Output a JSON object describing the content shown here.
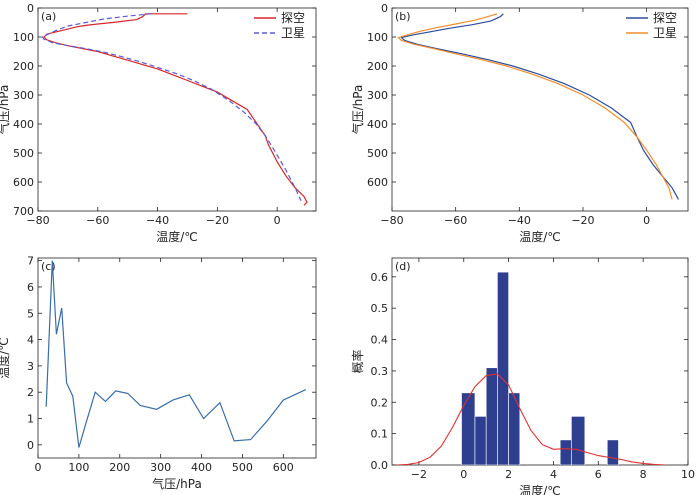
{
  "chart_data": [
    {
      "panel": "(a)",
      "type": "line",
      "xlabel": "温度/℃",
      "ylabel": "气压/hPa",
      "xlim": [
        -80,
        13
      ],
      "ylim": [
        700,
        0
      ],
      "y_inverted": true,
      "xticks": [
        -80,
        -60,
        -40,
        -20,
        0
      ],
      "yticks": [
        0,
        100,
        200,
        300,
        400,
        500,
        600,
        700
      ],
      "legend": "top-right",
      "series": [
        {
          "name": "探空",
          "color": "#d62728",
          "dash": "solid",
          "x": [
            -30,
            -44,
            -44.5,
            -45,
            -47,
            -55,
            -60,
            -64,
            -67,
            -69,
            -71,
            -73,
            -75,
            -77,
            -78,
            -77,
            -74,
            -70,
            -65,
            -60,
            -55,
            -50,
            -45,
            -40,
            -35,
            -30,
            -25,
            -20,
            -15,
            -10,
            -8,
            -6,
            -4,
            -3,
            0,
            3,
            6,
            9,
            10,
            9
          ],
          "y": [
            20,
            20,
            25,
            30,
            40,
            50,
            55,
            60,
            65,
            70,
            75,
            80,
            85,
            90,
            100,
            110,
            120,
            130,
            140,
            150,
            165,
            180,
            195,
            210,
            230,
            250,
            270,
            290,
            320,
            350,
            380,
            410,
            440,
            470,
            530,
            580,
            620,
            650,
            670,
            680
          ]
        },
        {
          "name": "卫星",
          "color": "#5b5bd6",
          "dash": "dashed",
          "x": [
            -42,
            -50,
            -58,
            -64,
            -70,
            -74,
            -77,
            -78.5,
            -78,
            -75,
            -70,
            -64,
            -58,
            -52,
            -46,
            -40,
            -34,
            -28,
            -22,
            -16,
            -11,
            -7,
            -4,
            -1,
            3,
            6,
            8
          ],
          "y": [
            20,
            28,
            38,
            50,
            62,
            78,
            92,
            100,
            108,
            120,
            130,
            140,
            152,
            168,
            185,
            205,
            225,
            250,
            280,
            320,
            360,
            400,
            440,
            490,
            560,
            620,
            665
          ]
        }
      ]
    },
    {
      "panel": "(b)",
      "type": "line",
      "xlabel": "温度/℃",
      "ylabel": "气压/hPa",
      "xlim": [
        -80,
        13
      ],
      "ylim": [
        700,
        0
      ],
      "y_inverted": true,
      "xticks": [
        -80,
        -60,
        -40,
        -20,
        0
      ],
      "yticks": [
        0,
        100,
        200,
        300,
        400,
        500,
        600
      ],
      "legend": "top-right",
      "series": [
        {
          "name": "探空",
          "color": "#2c4b9c",
          "x": [
            -45,
            -46,
            -49,
            -55,
            -62,
            -68,
            -73,
            -77,
            -76,
            -72,
            -66,
            -58,
            -50,
            -42,
            -34,
            -26,
            -18,
            -11,
            -5,
            -3,
            -1,
            2,
            5,
            8,
            10
          ],
          "y": [
            20,
            30,
            45,
            58,
            70,
            82,
            92,
            102,
            112,
            125,
            140,
            158,
            178,
            200,
            228,
            260,
            300,
            345,
            395,
            445,
            490,
            540,
            580,
            620,
            660
          ]
        },
        {
          "name": "卫星",
          "color": "#f28e2b",
          "x": [
            -47,
            -50,
            -54,
            -60,
            -66,
            -71,
            -75,
            -78,
            -77,
            -73,
            -67,
            -60,
            -52,
            -44,
            -36,
            -28,
            -20,
            -13,
            -7,
            -3,
            0,
            3,
            5,
            7,
            8
          ],
          "y": [
            20,
            30,
            42,
            55,
            68,
            80,
            92,
            102,
            112,
            125,
            140,
            158,
            178,
            200,
            228,
            260,
            300,
            345,
            395,
            445,
            490,
            540,
            580,
            620,
            660
          ]
        }
      ]
    },
    {
      "panel": "(c)",
      "type": "line",
      "xlabel": "气压/hPa",
      "ylabel": "温度/℃",
      "xlim": [
        0,
        680
      ],
      "ylim": [
        -0.5,
        7.1
      ],
      "xticks": [
        0,
        100,
        200,
        300,
        400,
        500,
        600
      ],
      "yticks": [
        0,
        1,
        2,
        3,
        4,
        5,
        6,
        7
      ],
      "series": [
        {
          "name": "",
          "color": "#3a6ea5",
          "x": [
            20,
            35,
            45,
            58,
            70,
            85,
            100,
            115,
            140,
            165,
            190,
            220,
            250,
            290,
            330,
            370,
            405,
            445,
            480,
            520,
            560,
            600,
            655
          ],
          "y": [
            1.45,
            7.0,
            4.2,
            5.2,
            2.35,
            1.85,
            -0.1,
            0.7,
            2.0,
            1.65,
            2.05,
            1.95,
            1.5,
            1.35,
            1.7,
            1.9,
            1.0,
            1.6,
            0.15,
            0.2,
            0.9,
            1.7,
            2.1
          ]
        }
      ]
    },
    {
      "panel": "(d)",
      "type": "bar",
      "xlabel": "温度/℃",
      "ylabel": "概率",
      "xlim": [
        -3.2,
        10
      ],
      "ylim": [
        0,
        0.66
      ],
      "xticks": [
        -2,
        0,
        2,
        4,
        6,
        8,
        10
      ],
      "yticks": [
        0.0,
        0.1,
        0.2,
        0.3,
        0.4,
        0.5,
        0.6
      ],
      "bar_color": "#2e3f8f",
      "bins": [
        {
          "x0": -0.1,
          "x1": 0.5,
          "value": 0.23
        },
        {
          "x0": 0.5,
          "x1": 1.0,
          "value": 0.155
        },
        {
          "x0": 1.0,
          "x1": 1.5,
          "value": 0.31
        },
        {
          "x0": 1.5,
          "x1": 2.0,
          "value": 0.615
        },
        {
          "x0": 2.0,
          "x1": 2.5,
          "value": 0.23
        },
        {
          "x0": 4.3,
          "x1": 4.8,
          "value": 0.08
        },
        {
          "x0": 4.8,
          "x1": 5.4,
          "value": 0.155
        },
        {
          "x0": 6.4,
          "x1": 6.9,
          "value": 0.08
        }
      ],
      "kde": {
        "color": "#e03030",
        "x": [
          -3.0,
          -2.5,
          -2.0,
          -1.5,
          -1.0,
          -0.5,
          0.0,
          0.5,
          1.0,
          1.5,
          2.0,
          2.5,
          3.0,
          3.5,
          4.0,
          4.5,
          5.0,
          5.5,
          6.0,
          6.5,
          7.0,
          7.5,
          8.0,
          8.5,
          9.0
        ],
        "y": [
          0.0,
          0.002,
          0.008,
          0.025,
          0.06,
          0.12,
          0.19,
          0.25,
          0.285,
          0.29,
          0.255,
          0.18,
          0.11,
          0.065,
          0.05,
          0.052,
          0.05,
          0.04,
          0.03,
          0.024,
          0.018,
          0.01,
          0.005,
          0.002,
          0.0
        ]
      }
    }
  ]
}
